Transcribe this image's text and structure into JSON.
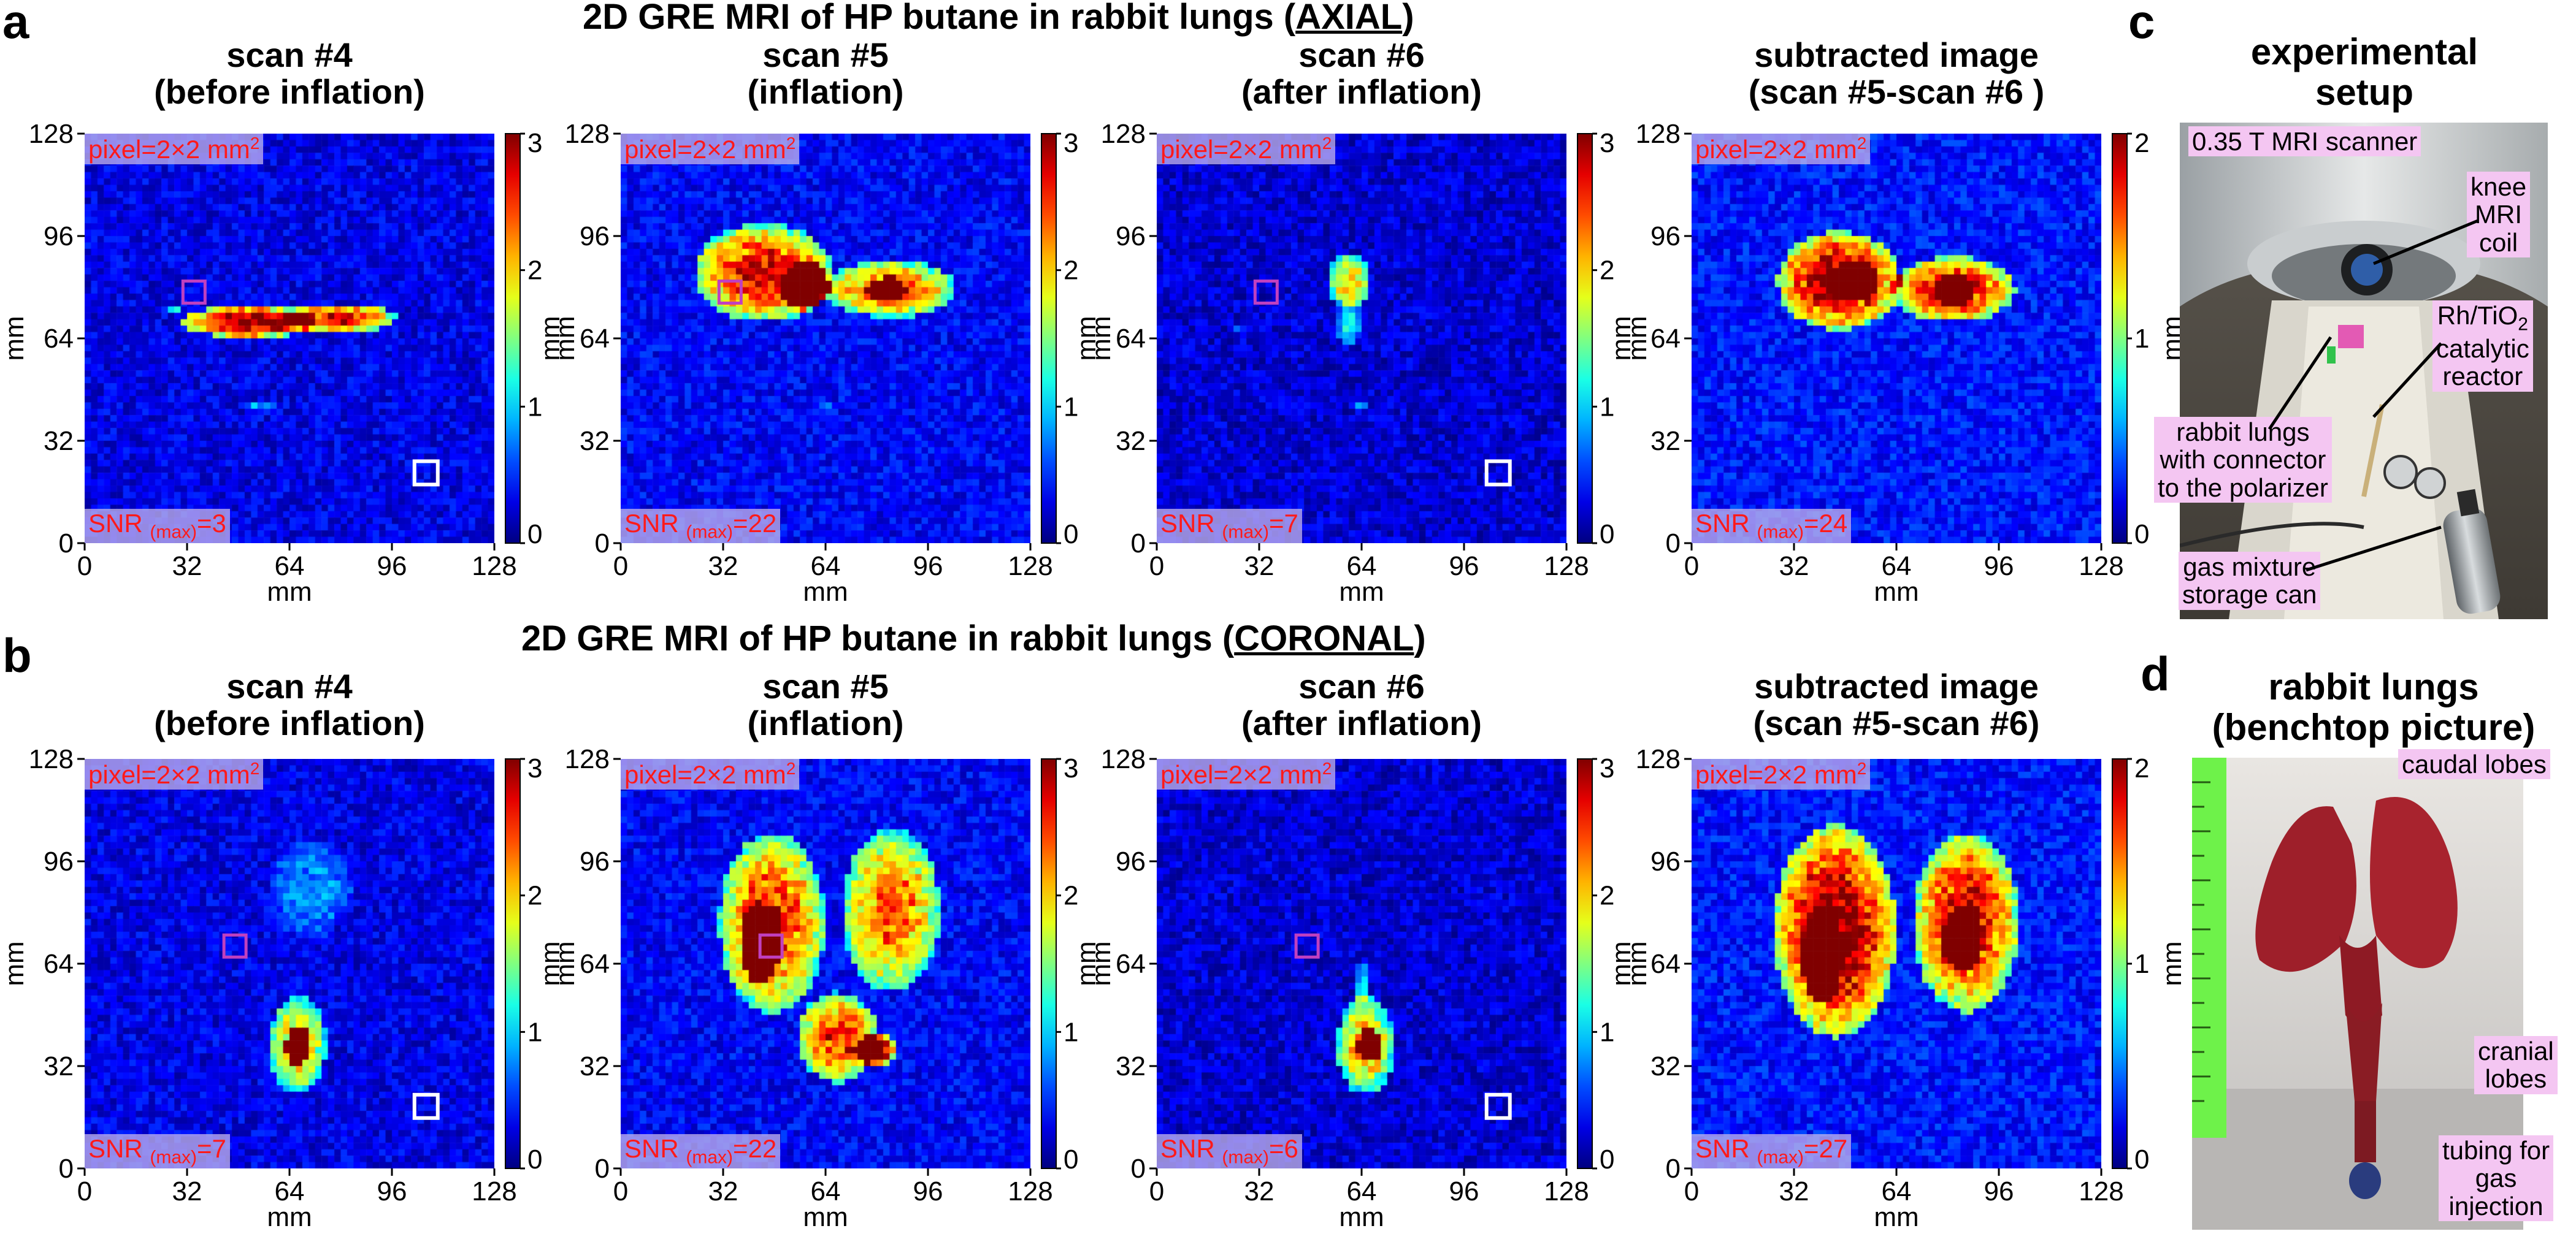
{
  "panel_letters": [
    "a",
    "b",
    "c",
    "d"
  ],
  "rows": [
    {
      "title_prefix": "2D GRE MRI of HP butane in rabbit lungs (",
      "title_view": "AXIAL",
      "title_suffix": ")",
      "panels": [
        {
          "title1": "scan #4",
          "title2": "(before inflation)",
          "pixel_label": "pixel=2×2 mm",
          "snr_prefix": "SNR",
          "snr_sub": "(max)",
          "snr_value": "=3",
          "cb_ticks": [
            "0",
            "1",
            "2",
            "3"
          ],
          "cb_max": 3
        },
        {
          "title1": "scan #5",
          "title2": "(inflation)",
          "pixel_label": "pixel=2×2 mm",
          "snr_prefix": "SNR",
          "snr_sub": "(max)",
          "snr_value": "=22",
          "cb_ticks": [
            "0",
            "1",
            "2",
            "3"
          ],
          "cb_max": 3
        },
        {
          "title1": "scan #6",
          "title2": "(after inflation)",
          "pixel_label": "pixel=2×2 mm",
          "snr_prefix": "SNR",
          "snr_sub": "(max)",
          "snr_value": "=7",
          "cb_ticks": [
            "0",
            "1",
            "2",
            "3"
          ],
          "cb_max": 3
        },
        {
          "title1": "subtracted image",
          "title2": "(scan #5-scan #6 )",
          "pixel_label": "pixel=2×2 mm",
          "snr_prefix": "SNR",
          "snr_sub": "(max)",
          "snr_value": "=24",
          "cb_ticks": [
            "0",
            "1",
            "2"
          ],
          "cb_max": 2
        }
      ]
    },
    {
      "title_prefix": "2D GRE MRI of HP butane in rabbit lungs (",
      "title_view": "CORONAL",
      "title_suffix": ")",
      "panels": [
        {
          "title1": "scan #4",
          "title2": "(before inflation)",
          "pixel_label": "pixel=2×2 mm",
          "snr_prefix": "SNR",
          "snr_sub": "(max)",
          "snr_value": "=7",
          "cb_ticks": [
            "0",
            "1",
            "2",
            "3"
          ],
          "cb_max": 3
        },
        {
          "title1": "scan #5",
          "title2": "(inflation)",
          "pixel_label": "pixel=2×2 mm",
          "snr_prefix": "SNR",
          "snr_sub": "(max)",
          "snr_value": "=22",
          "cb_ticks": [
            "0",
            "1",
            "2",
            "3"
          ],
          "cb_max": 3
        },
        {
          "title1": "scan #6",
          "title2": "(after inflation)",
          "pixel_label": "pixel=2×2 mm",
          "snr_prefix": "SNR",
          "snr_sub": "(max)",
          "snr_value": "=6",
          "cb_ticks": [
            "0",
            "1",
            "2",
            "3"
          ],
          "cb_max": 3
        },
        {
          "title1": "subtracted image",
          "title2": "(scan #5-scan #6)",
          "pixel_label": "pixel=2×2 mm",
          "snr_prefix": "SNR",
          "snr_sub": "(max)",
          "snr_value": "=27",
          "cb_ticks": [
            "0",
            "1",
            "2"
          ],
          "cb_max": 2
        }
      ]
    }
  ],
  "axis": {
    "ticks": [
      "0",
      "32",
      "64",
      "96",
      "128"
    ],
    "unit": "mm",
    "colorbar_unit": "mm",
    "superscript": "2"
  },
  "panel_c": {
    "title1": "experimental",
    "title2": "setup",
    "callouts": [
      {
        "text": "0.35 T MRI scanner"
      },
      {
        "text": "knee|MRI|coil"
      },
      {
        "text": "Rh/TiO|catalytic|reactor"
      },
      {
        "text": "rabbit lungs|with connector|to the polarizer"
      },
      {
        "text": "gas mixture|storage can"
      }
    ],
    "subscript_2": "2"
  },
  "panel_d": {
    "title1": "rabbit lungs",
    "title2": "(benchtop picture)",
    "callouts": [
      {
        "text": "caudal lobes"
      },
      {
        "text": "cranial|lobes"
      },
      {
        "text": "tubing for|gas|injection"
      }
    ]
  },
  "colors": {
    "jet_low": "#00007f",
    "jet_high": "#7f0000",
    "label_red": "#ff1a1a",
    "label_bg": "#beafeb",
    "callout_bg": "#f4c6f2"
  }
}
